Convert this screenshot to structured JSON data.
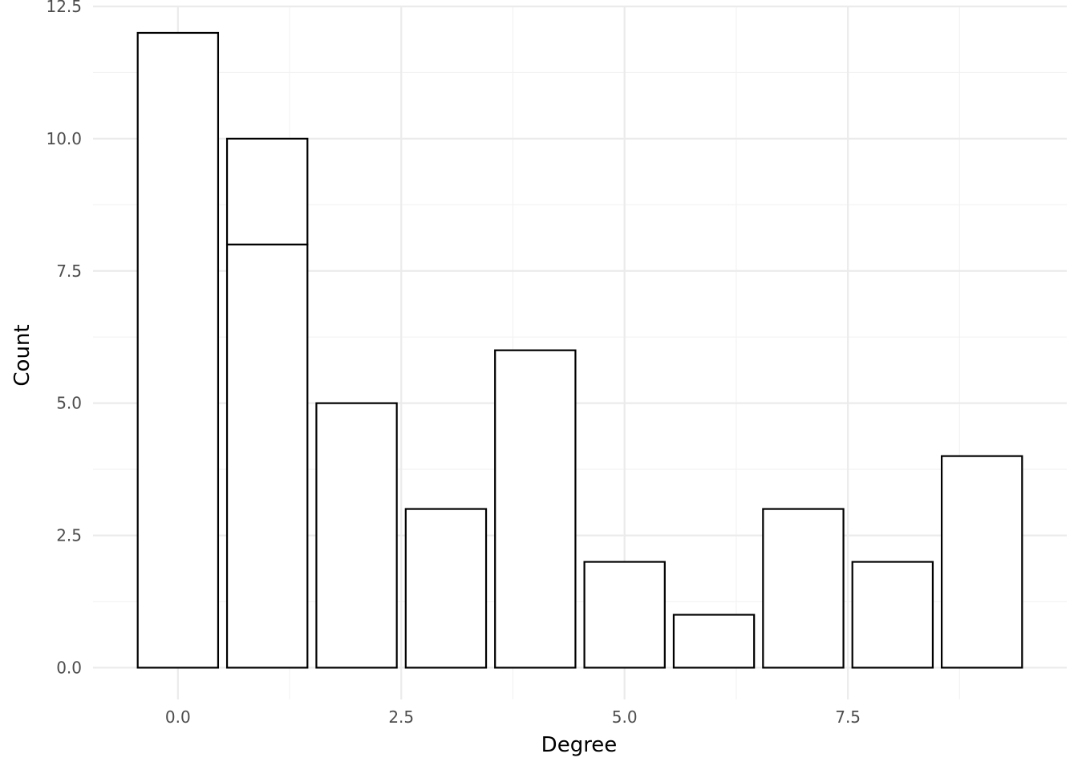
{
  "chart_data": {
    "type": "bar",
    "title": "",
    "xlabel": "Degree",
    "ylabel": "Count",
    "x": [
      0,
      1,
      2,
      3,
      4,
      5,
      6,
      7,
      8,
      9
    ],
    "series": [
      {
        "values": [
          12,
          8,
          5,
          3,
          6,
          2,
          1,
          3,
          2,
          4
        ]
      },
      {
        "values": [
          0,
          2,
          0,
          0,
          0,
          0,
          0,
          0,
          0,
          0
        ]
      }
    ],
    "xlim": [
      -0.95,
      9.95
    ],
    "ylim": [
      -0.6,
      12.5
    ],
    "bar_width": 0.9,
    "x_ticks": [
      0.0,
      2.5,
      5.0,
      7.5
    ],
    "x_tick_labels": [
      "0.0",
      "2.5",
      "5.0",
      "7.5"
    ],
    "x_minor_ticks": [
      1.25,
      3.75,
      6.25,
      8.75
    ],
    "y_ticks": [
      0.0,
      2.5,
      5.0,
      7.5,
      10.0,
      12.5
    ],
    "y_tick_labels": [
      "0.0",
      "2.5",
      "5.0",
      "7.5",
      "10.0",
      "12.5"
    ],
    "y_minor_ticks": [
      1.25,
      3.75,
      6.25,
      8.75,
      11.25
    ],
    "grid": true,
    "legend": "none",
    "colors": {
      "bar_fill": "#ffffff",
      "bar_stroke": "#000000",
      "grid_major": "#ebebeb",
      "grid_minor": "#f2f2f2"
    }
  }
}
